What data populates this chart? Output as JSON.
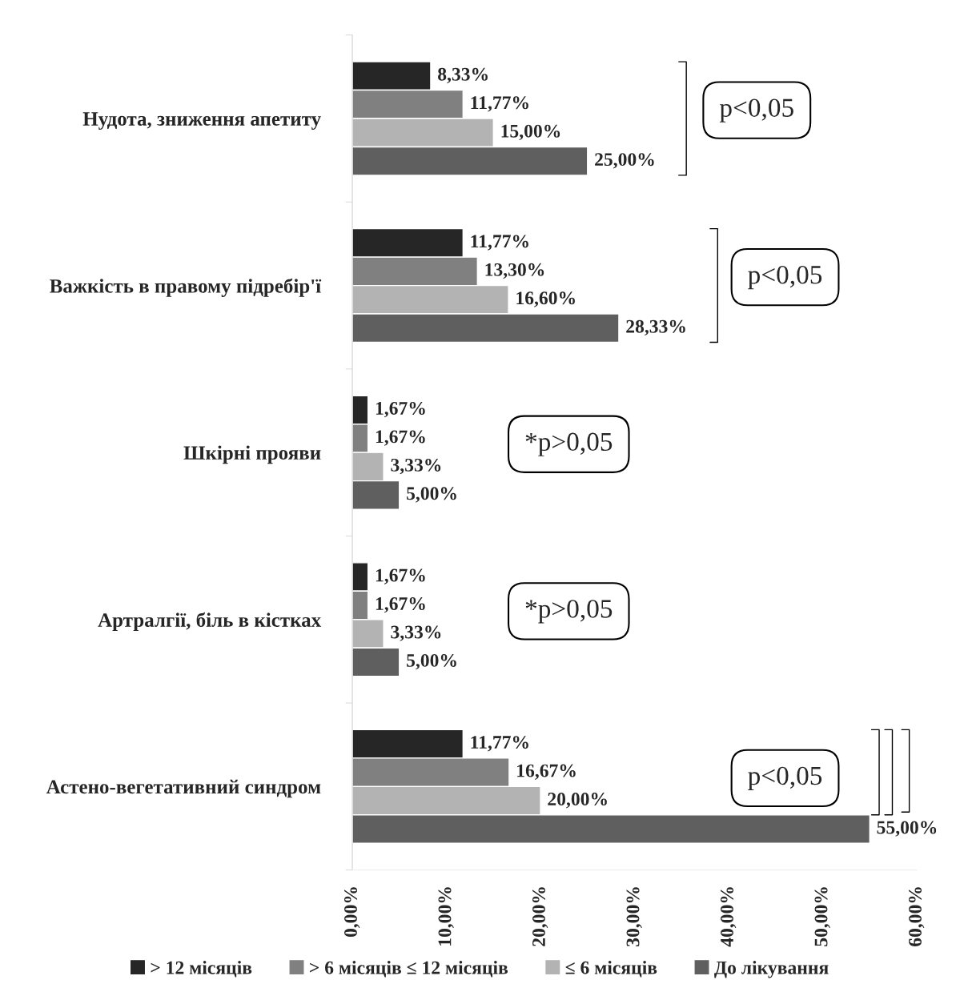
{
  "chart_data": {
    "type": "bar",
    "orientation": "horizontal",
    "categories": [
      "Нудота, зниження апетиту",
      "Важкість в правому підребір'ї",
      "Шкірні прояви",
      "Артралгії, біль в кістках",
      "Астено-вегетативний синдром"
    ],
    "series": [
      {
        "name": "> 12 місяців",
        "color": "#262626",
        "values": [
          8.33,
          11.77,
          1.67,
          1.67,
          11.77
        ],
        "value_labels": [
          "8,33%",
          "11,77%",
          "1,67%",
          "1,67%",
          "11,77%"
        ]
      },
      {
        "name": "> 6 місяців ≤ 12 місяців",
        "color": "#808080",
        "values": [
          11.77,
          13.3,
          1.67,
          1.67,
          16.67
        ],
        "value_labels": [
          "11,77%",
          "13,30%",
          "1,67%",
          "1,67%",
          "16,67%"
        ]
      },
      {
        "name": "≤ 6 місяців",
        "color": "#b3b3b3",
        "values": [
          15.0,
          16.6,
          3.33,
          3.33,
          20.0
        ],
        "value_labels": [
          "15,00%",
          "16,60%",
          "3,33%",
          "3,33%",
          "20,00%"
        ]
      },
      {
        "name": "До лікування",
        "color": "#5f5f5f",
        "values": [
          25.0,
          28.33,
          5.0,
          5.0,
          55.0
        ],
        "value_labels": [
          "25,00%",
          "28,33%",
          "5,00%",
          "5,00%",
          "55,00%"
        ]
      }
    ],
    "xlim": [
      0,
      60
    ],
    "xticks": [
      {
        "value": 0,
        "label": "0,00%"
      },
      {
        "value": 10,
        "label": "10,00%"
      },
      {
        "value": 20,
        "label": "20,00%"
      },
      {
        "value": 30,
        "label": "30,00%"
      },
      {
        "value": 40,
        "label": "40,00%"
      },
      {
        "value": 50,
        "label": "50,00%"
      },
      {
        "value": 60,
        "label": "60,00%"
      }
    ],
    "annotations": [
      "p<0,05",
      "p<0,05",
      "*p>0,05",
      "*p>0,05",
      "p<0,05"
    ],
    "grid": false,
    "legend": "bottom"
  }
}
